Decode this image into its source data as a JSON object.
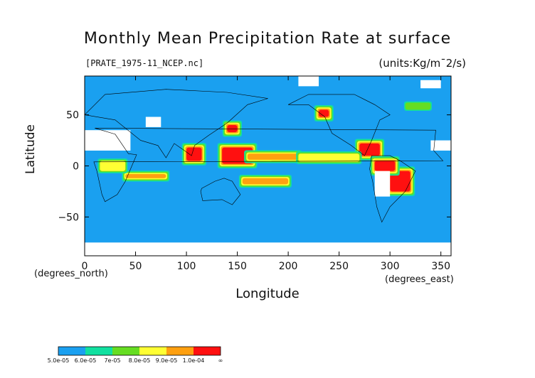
{
  "chart_data": {
    "type": "heatmap",
    "title": "Monthly Mean Precipitation Rate at surface",
    "file_label": "[PRATE_1975-11_NCEP.nc]",
    "units_label": "(units:Kg/m¯2/s)",
    "xlabel": "Longitude",
    "ylabel": "Latitude",
    "x_unit_label": "(degrees_east)",
    "y_unit_label": "(degrees_north)",
    "xlim": [
      0,
      360
    ],
    "ylim": [
      -88,
      88
    ],
    "x_ticks": [
      "0",
      "50",
      "100",
      "150",
      "200",
      "250",
      "300",
      "350"
    ],
    "x_tick_values": [
      0,
      50,
      100,
      150,
      200,
      250,
      300,
      350
    ],
    "y_ticks": [
      "50",
      "0",
      "−50"
    ],
    "y_tick_values": [
      50,
      0,
      -50
    ],
    "colorbar": {
      "labels": [
        "5.0e-05",
        "6.0e-05",
        "7e-05",
        "8.0e-05",
        "9.0e-05",
        "1.0e-04",
        "∞"
      ],
      "colors": [
        "#1aa0f0",
        "#11e0a0",
        "#66dd22",
        "#ffff33",
        "#ffa010",
        "#ff1010"
      ]
    },
    "base_color": "#1aa0f0",
    "missing_color": "#ffffff",
    "regions": [
      {
        "level": 5,
        "lon": [
          135,
          165
        ],
        "lat": [
          2,
          18
        ]
      },
      {
        "level": 5,
        "lon": [
          100,
          115
        ],
        "lat": [
          5,
          18
        ]
      },
      {
        "level": 5,
        "lon": [
          270,
          290
        ],
        "lat": [
          10,
          22
        ]
      },
      {
        "level": 5,
        "lon": [
          300,
          320
        ],
        "lat": [
          -25,
          -5
        ]
      },
      {
        "level": 5,
        "lon": [
          285,
          305
        ],
        "lat": [
          -5,
          5
        ]
      },
      {
        "level": 4,
        "lon": [
          160,
          210
        ],
        "lat": [
          6,
          12
        ]
      },
      {
        "level": 4,
        "lon": [
          40,
          80
        ],
        "lat": [
          -12,
          -8
        ]
      },
      {
        "level": 4,
        "lon": [
          155,
          200
        ],
        "lat": [
          -18,
          -12
        ]
      },
      {
        "level": 3,
        "lon": [
          210,
          270
        ],
        "lat": [
          4,
          12
        ]
      },
      {
        "level": 3,
        "lon": [
          15,
          40
        ],
        "lat": [
          -5,
          5
        ]
      },
      {
        "level": 5,
        "lon": [
          140,
          150
        ],
        "lat": [
          33,
          40
        ]
      },
      {
        "level": 5,
        "lon": [
          230,
          240
        ],
        "lat": [
          48,
          55
        ]
      },
      {
        "level": 2,
        "lon": [
          315,
          340
        ],
        "lat": [
          55,
          62
        ]
      }
    ],
    "missing_regions": [
      {
        "lon": [
          0,
          45
        ],
        "lat": [
          15,
          35
        ]
      },
      {
        "lon": [
          60,
          75
        ],
        "lat": [
          38,
          48
        ]
      },
      {
        "lon": [
          285,
          300
        ],
        "lat": [
          -30,
          -5
        ]
      },
      {
        "lon": [
          340,
          360
        ],
        "lat": [
          15,
          25
        ]
      },
      {
        "lon": [
          0,
          360
        ],
        "lat": [
          -88,
          -75
        ]
      },
      {
        "lon": [
          210,
          230
        ],
        "lat": [
          78,
          88
        ]
      },
      {
        "lon": [
          330,
          350
        ],
        "lat": [
          76,
          84
        ]
      }
    ]
  }
}
